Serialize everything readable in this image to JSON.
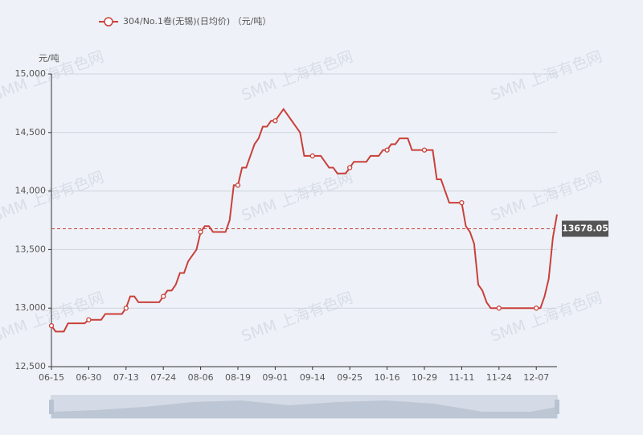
{
  "chart_data": {
    "type": "line",
    "yaxis_label": "元/吨",
    "watermark": "SMM 上海有色网",
    "categories": [
      "06-15",
      null,
      null,
      null,
      null,
      null,
      null,
      null,
      null,
      "06-30",
      null,
      null,
      null,
      null,
      null,
      null,
      null,
      null,
      "07-13",
      null,
      null,
      null,
      null,
      null,
      null,
      null,
      null,
      "07-24",
      null,
      null,
      null,
      null,
      null,
      null,
      null,
      null,
      "08-06",
      null,
      null,
      null,
      null,
      null,
      null,
      null,
      null,
      "08-19",
      null,
      null,
      null,
      null,
      null,
      null,
      null,
      null,
      "09-01",
      null,
      null,
      null,
      null,
      null,
      null,
      null,
      null,
      "09-14",
      null,
      null,
      null,
      null,
      null,
      null,
      null,
      null,
      "09-25",
      null,
      null,
      null,
      null,
      null,
      null,
      null,
      null,
      "10-16",
      null,
      null,
      null,
      null,
      null,
      null,
      null,
      null,
      "10-29",
      null,
      null,
      null,
      null,
      null,
      null,
      null,
      null,
      "11-11",
      null,
      null,
      null,
      null,
      null,
      null,
      null,
      null,
      "11-24",
      null,
      null,
      null,
      null,
      null,
      null,
      null,
      null,
      "12-07",
      null,
      null,
      null,
      null,
      null
    ],
    "series": [
      {
        "name": "304/No.1卷(无锡)(日均价) （元/吨）",
        "color": "#c9403a",
        "values": [
          12850,
          12800,
          12800,
          12800,
          12870,
          12870,
          12870,
          12870,
          12870,
          12900,
          12900,
          12900,
          12900,
          12950,
          12950,
          12950,
          12950,
          12950,
          13000,
          13100,
          13100,
          13050,
          13050,
          13050,
          13050,
          13050,
          13050,
          13100,
          13150,
          13150,
          13200,
          13300,
          13300,
          13400,
          13450,
          13500,
          13650,
          13700,
          13700,
          13650,
          13650,
          13650,
          13650,
          13750,
          14050,
          14050,
          14200,
          14200,
          14300,
          14400,
          14450,
          14550,
          14550,
          14600,
          14600,
          14650,
          14700,
          14650,
          14600,
          14550,
          14500,
          14300,
          14300,
          14300,
          14300,
          14300,
          14250,
          14200,
          14200,
          14150,
          14150,
          14150,
          14200,
          14250,
          14250,
          14250,
          14250,
          14300,
          14300,
          14300,
          14350,
          14350,
          14400,
          14400,
          14450,
          14450,
          14450,
          14350,
          14350,
          14350,
          14350,
          14350,
          14350,
          14100,
          14100,
          14000,
          13900,
          13900,
          13900,
          13900,
          13700,
          13650,
          13550,
          13200,
          13150,
          13050,
          13000,
          13000,
          13000,
          13000,
          13000,
          13000,
          13000,
          13000,
          13000,
          13000,
          13000,
          13000,
          13000,
          13100,
          13250,
          13600,
          13800
        ]
      }
    ],
    "mark_line": 13678.05,
    "ylim": [
      12500,
      15000
    ],
    "yticks": [
      {
        "value": 12500,
        "label": "12,500"
      },
      {
        "value": 13000,
        "label": "13,000"
      },
      {
        "value": 13500,
        "label": "13,500"
      },
      {
        "value": 14000,
        "label": "14,000"
      },
      {
        "value": 14500,
        "label": "14,500"
      },
      {
        "value": 15000,
        "label": "15,000"
      }
    ],
    "grid": true
  }
}
